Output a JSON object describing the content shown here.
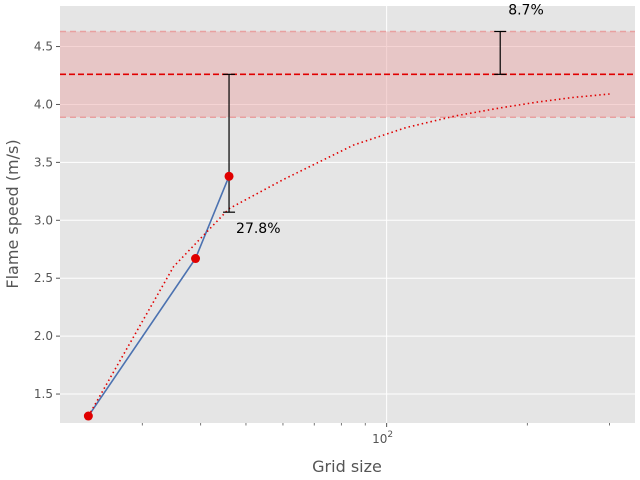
{
  "chart_data": {
    "type": "line",
    "xlabel": "Grid size",
    "ylabel": "Flame speed (m/s)",
    "xscale": "log",
    "xlim": [
      20,
      340
    ],
    "ylim": [
      1.25,
      4.85
    ],
    "grid": true,
    "x_tick_labels": [
      {
        "value": 100,
        "label": "10",
        "exp": "2"
      }
    ],
    "x_minor_ticks": [
      30,
      40,
      50,
      60,
      70,
      80,
      90,
      200,
      300
    ],
    "y_ticks": [
      1.5,
      2.0,
      2.5,
      3.0,
      3.5,
      4.0,
      4.5
    ],
    "y_tick_labels": [
      "1.5",
      "2.0",
      "2.5",
      "3.0",
      "3.5",
      "4.0",
      "4.5"
    ],
    "series": [
      {
        "kind": "simulation",
        "color": "#4c72b0",
        "x": [
          23,
          39,
          46
        ],
        "y": [
          1.31,
          2.67,
          3.38
        ],
        "markers": true,
        "marker_color": "#e00000"
      },
      {
        "kind": "extrapolation",
        "color": "#e00000",
        "style": "dotted",
        "x": [
          23,
          35,
          46,
          60,
          85,
          110,
          140,
          175,
          210,
          250,
          300
        ],
        "y": [
          1.31,
          2.6,
          3.1,
          3.35,
          3.65,
          3.8,
          3.9,
          3.97,
          4.02,
          4.06,
          4.09
        ]
      }
    ],
    "reference": {
      "value": 4.26,
      "band": [
        3.89,
        4.63
      ],
      "line_color": "#e00000",
      "band_color": "#e8a0a0"
    },
    "error_bars": [
      {
        "x": 46,
        "y_low": 3.07,
        "y_high": 4.26,
        "label": "27.8%"
      },
      {
        "x": 175,
        "y_low": 4.26,
        "y_high": 4.63,
        "label": "8.7%"
      }
    ],
    "colors": {
      "background": "#e5e5e5",
      "grid": "#ffffff"
    }
  }
}
